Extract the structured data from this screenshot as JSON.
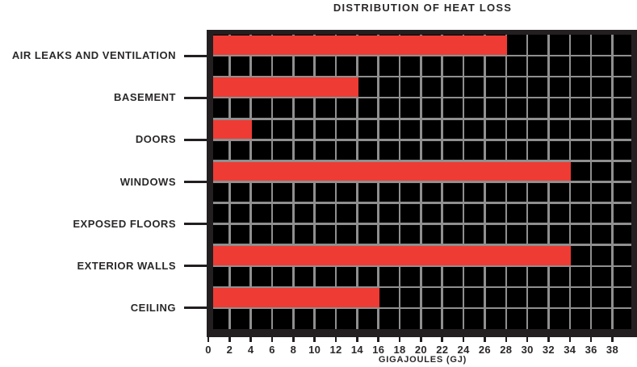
{
  "chart_data": {
    "type": "bar",
    "orientation": "horizontal",
    "title": "DISTRIBUTION OF HEAT LOSS",
    "xlabel": "GIGAJOULES (GJ)",
    "categories": [
      "AIR LEAKS AND VENTILATION",
      "BASEMENT",
      "DOORS",
      "WINDOWS",
      "EXPOSED FLOORS",
      "EXTERIOR WALLS",
      "CEILING"
    ],
    "values": [
      28,
      14,
      4,
      34,
      0,
      34,
      16
    ],
    "xticks": [
      0,
      2,
      4,
      6,
      8,
      10,
      12,
      14,
      16,
      18,
      20,
      22,
      24,
      26,
      28,
      30,
      32,
      34,
      36,
      38
    ],
    "xlim": [
      0,
      40
    ],
    "grid": true,
    "legend": "none",
    "colors": {
      "bar": "#ee3b34",
      "plot_background": "#000000",
      "gridline": "#8f8f8f",
      "axis": "#231f20",
      "text": "#2b2828",
      "page_background": "#ffffff"
    }
  }
}
